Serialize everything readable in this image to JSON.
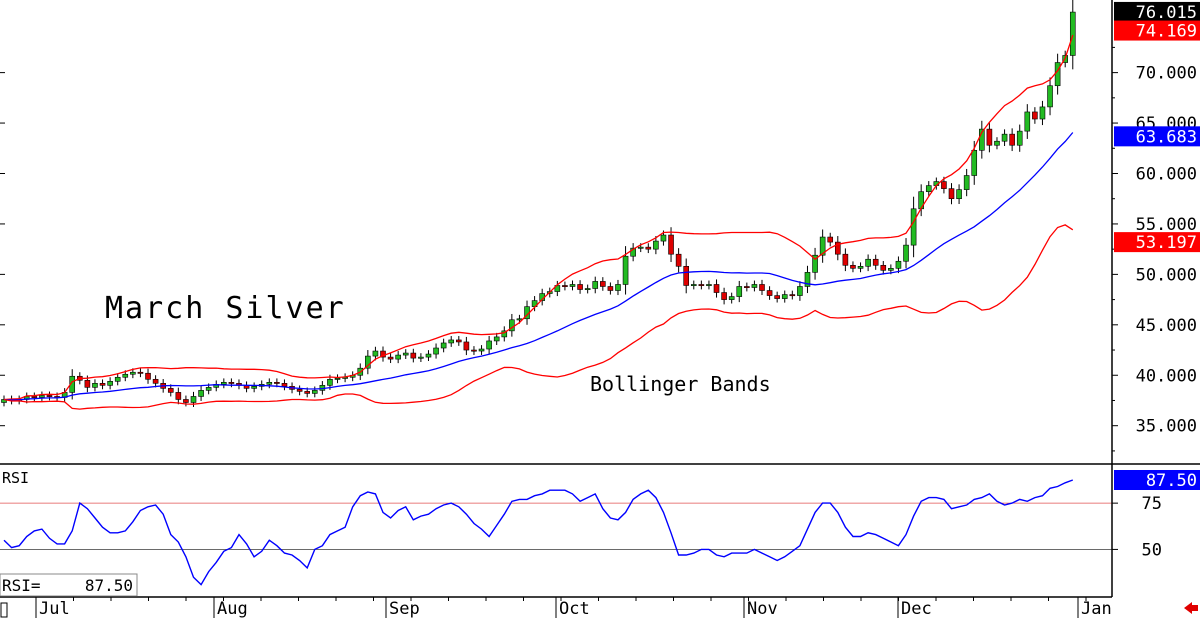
{
  "chart_data": [
    {
      "type": "candlestick",
      "title": "March Silver",
      "annotation": "Bollinger Bands",
      "x_months": [
        "Jul",
        "Aug",
        "Sep",
        "Oct",
        "Nov",
        "Dec",
        "Jan"
      ],
      "y_tick_labels": [
        "35.000",
        "40.000",
        "45.000",
        "50.000",
        "55.000",
        "60.000",
        "65.000",
        "70.000"
      ],
      "y_ticks": [
        35,
        40,
        45,
        50,
        55,
        60,
        65,
        70
      ],
      "ylim": [
        31.5,
        77
      ],
      "grid": false,
      "price_labels": {
        "last": {
          "value": "76.015",
          "num": 76.015,
          "color": "#000000"
        },
        "upper_band": {
          "value": "74.169",
          "num": 74.169,
          "color": "#ff0000"
        },
        "middle_band": {
          "value": "63.683",
          "num": 63.683,
          "color": "#0000ff"
        },
        "lower_band": {
          "value": "53.197",
          "num": 53.197,
          "color": "#ff0000"
        }
      },
      "colors": {
        "up": "#22bb22",
        "down": "#dd0000",
        "middle_band": "#0000ff",
        "outer_bands": "#ff0000"
      },
      "candles_close": [
        37.6,
        37.5,
        37.6,
        37.9,
        37.8,
        38.0,
        37.9,
        37.8,
        38.3,
        39.9,
        39.5,
        38.8,
        39.2,
        39.0,
        39.4,
        39.8,
        40.1,
        40.3,
        40.2,
        39.6,
        39.2,
        38.7,
        38.3,
        37.6,
        37.3,
        37.9,
        38.5,
        38.8,
        39.1,
        39.3,
        39.2,
        39.0,
        38.7,
        38.9,
        39.1,
        39.3,
        39.2,
        38.9,
        38.6,
        38.4,
        38.2,
        38.5,
        39.0,
        39.6,
        39.7,
        39.8,
        40.0,
        40.7,
        41.9,
        42.4,
        41.8,
        41.6,
        42.0,
        42.2,
        41.7,
        41.8,
        42.1,
        42.7,
        43.2,
        43.5,
        43.3,
        42.5,
        42.4,
        42.6,
        43.4,
        43.8,
        44.4,
        45.5,
        45.6,
        46.8,
        47.4,
        48.1,
        48.3,
        48.9,
        48.8,
        49.0,
        48.5,
        48.6,
        49.3,
        48.8,
        48.4,
        49.0,
        51.8,
        52.6,
        52.7,
        52.5,
        53.3,
        53.9,
        52.0,
        50.8,
        48.9,
        49.0,
        48.9,
        49.0,
        48.2,
        47.5,
        47.8,
        48.8,
        48.7,
        49.0,
        48.4,
        47.9,
        47.6,
        48.0,
        47.9,
        48.8,
        50.2,
        51.9,
        53.7,
        53.2,
        52.0,
        50.9,
        50.6,
        50.8,
        51.5,
        50.9,
        50.4,
        50.6,
        51.3,
        52.9,
        56.5,
        58.2,
        58.8,
        59.2,
        58.5,
        57.5,
        58.4,
        59.8,
        62.3,
        64.4,
        62.8,
        63.2,
        63.9,
        62.8,
        64.2,
        66.1,
        65.4,
        66.6,
        68.7,
        71.0,
        71.7,
        76.0
      ]
    },
    {
      "type": "line",
      "indicator": "RSI",
      "readout_label": "RSI=",
      "readout_value": "87.50",
      "last_badge": "87.50",
      "y_tick_labels": [
        "50",
        "75"
      ],
      "y_ticks": [
        50,
        75
      ],
      "reference_lines": [
        50,
        75
      ],
      "ylim": [
        27,
        87.5
      ],
      "line_color": "#0000ff",
      "values": [
        55,
        51,
        52,
        57,
        60,
        61,
        56,
        53,
        53,
        60,
        75,
        72,
        67,
        62,
        59,
        59,
        60,
        65,
        71,
        73,
        74,
        69,
        58,
        54,
        46,
        35,
        31,
        38,
        43,
        49,
        51,
        58,
        53,
        46,
        49,
        55,
        52,
        48,
        47,
        44,
        40,
        50,
        52,
        58,
        60,
        62,
        73,
        79,
        81,
        80,
        70,
        67,
        71,
        73,
        66,
        68,
        69,
        72,
        74,
        75,
        73,
        69,
        64,
        61,
        57,
        63,
        69,
        76,
        77,
        77,
        79,
        80,
        82,
        82,
        82,
        80,
        76,
        78,
        80,
        72,
        67,
        66,
        70,
        77,
        80,
        82,
        78,
        70,
        59,
        47,
        47,
        48,
        50,
        50,
        47,
        46,
        48,
        48,
        48,
        50,
        48,
        46,
        44,
        46,
        49,
        52,
        61,
        70,
        75,
        75,
        70,
        62,
        57,
        57,
        59,
        58,
        56,
        54,
        52,
        58,
        68,
        76,
        78,
        78,
        77,
        72,
        73,
        74,
        77,
        78,
        80,
        76,
        74,
        75,
        77,
        76,
        78,
        79,
        83,
        84,
        86,
        87.5
      ]
    }
  ]
}
